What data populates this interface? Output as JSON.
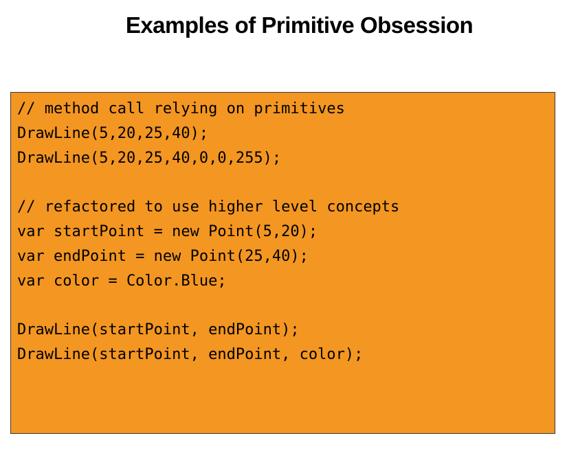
{
  "slide": {
    "title": "Examples of Primitive Obsession"
  },
  "code": {
    "lines": [
      "// method call relying on primitives",
      "DrawLine(5,20,25,40);",
      "DrawLine(5,20,25,40,0,0,255);",
      "",
      "// refactored to use higher level concepts",
      "var startPoint = new Point(5,20);",
      "var endPoint = new Point(25,40);",
      "var color = Color.Blue;",
      "",
      "DrawLine(startPoint, endPoint);",
      "DrawLine(startPoint, endPoint, color);"
    ]
  },
  "colors": {
    "code_background": "#f39622",
    "code_border": "#3a3a3a",
    "text": "#000000",
    "page_background": "#ffffff"
  }
}
